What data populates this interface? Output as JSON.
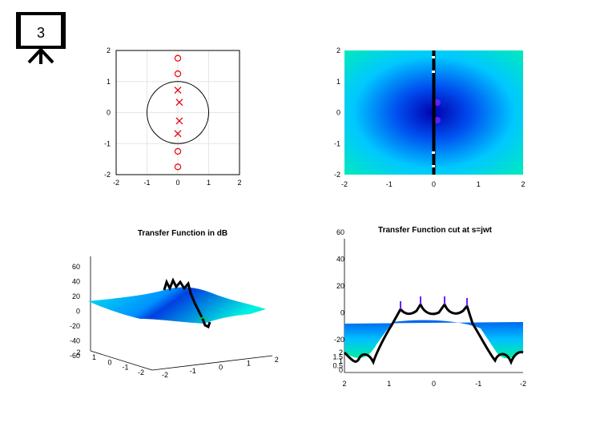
{
  "slide": {
    "number": "3"
  },
  "chart_data": [
    {
      "id": "pz",
      "type": "scatter",
      "title": "",
      "xlabel": "",
      "ylabel": "",
      "xlim": [
        -2,
        2
      ],
      "ylim": [
        -2,
        2
      ],
      "xticks": [
        "-2",
        "-1",
        "0",
        "1",
        "2"
      ],
      "yticks": [
        "2",
        "1",
        "0",
        "-1",
        "-2"
      ],
      "grid": true,
      "unit_circle": true,
      "series": [
        {
          "marker": "o",
          "points": [
            [
              0,
              1.75
            ],
            [
              0,
              1.25
            ],
            [
              0,
              -1.25
            ],
            [
              0,
              -1.75
            ]
          ]
        },
        {
          "marker": "x",
          "points": [
            [
              0,
              0.72
            ],
            [
              0.05,
              0.33
            ],
            [
              0.05,
              -0.27
            ],
            [
              0,
              -0.68
            ]
          ]
        }
      ],
      "colors": {
        "markers": "#e8000b",
        "circle": "#000000",
        "grid": "#e6e6e6"
      }
    },
    {
      "id": "map",
      "type": "heatmap",
      "title": "",
      "xlim": [
        -2,
        2
      ],
      "ylim": [
        -2,
        2
      ],
      "xticks": [
        "-2",
        "-1",
        "0",
        "1",
        "2"
      ],
      "yticks": [
        "2",
        "1",
        "0",
        "-1",
        "-2"
      ],
      "cut_line_x": 0,
      "colors": {
        "low": "#0000cc",
        "mid": "#00e0ff",
        "high": "#00ee88"
      }
    },
    {
      "id": "surf",
      "type": "surface",
      "title": "Transfer Function in dB",
      "zticks": [
        "60",
        "40",
        "20",
        "0",
        "-20",
        "-40",
        "-60"
      ],
      "yticks": [
        "2",
        "1",
        "0",
        "-1",
        "-2"
      ],
      "xticks": [
        "-2",
        "-1",
        "0",
        "1",
        "2"
      ]
    },
    {
      "id": "cut",
      "type": "surface",
      "title": "Transfer Function cut at s=jwt",
      "zticks": [
        "60",
        "40",
        "20",
        "0",
        "-20"
      ],
      "left_ticks": [
        "2",
        "1.5",
        "1",
        "0.5",
        "0"
      ],
      "xticks": [
        "2",
        "1",
        "0",
        "-1",
        "-2"
      ]
    }
  ]
}
